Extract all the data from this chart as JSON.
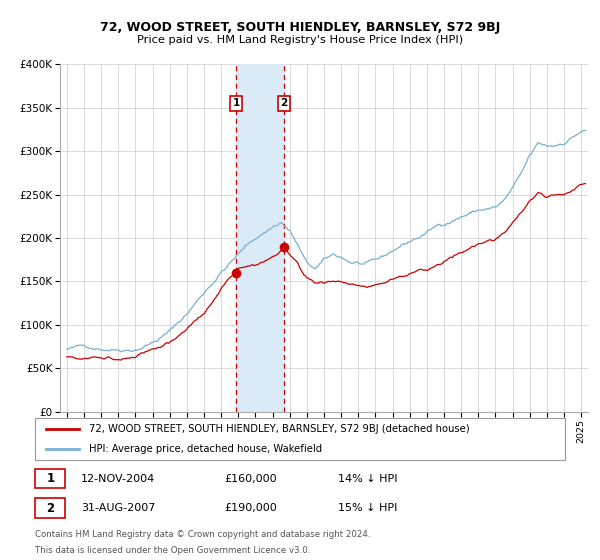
{
  "title": "72, WOOD STREET, SOUTH HIENDLEY, BARNSLEY, S72 9BJ",
  "subtitle": "Price paid vs. HM Land Registry's House Price Index (HPI)",
  "ylim": [
    0,
    400000
  ],
  "yticks": [
    0,
    50000,
    100000,
    150000,
    200000,
    250000,
    300000,
    350000,
    400000
  ],
  "ytick_labels": [
    "£0",
    "£50K",
    "£100K",
    "£150K",
    "£200K",
    "£250K",
    "£300K",
    "£350K",
    "£400K"
  ],
  "xlim_start": 1994.6,
  "xlim_end": 2025.4,
  "xticks": [
    1995,
    1996,
    1997,
    1998,
    1999,
    2000,
    2001,
    2002,
    2003,
    2004,
    2005,
    2006,
    2007,
    2008,
    2009,
    2010,
    2011,
    2012,
    2013,
    2014,
    2015,
    2016,
    2017,
    2018,
    2019,
    2020,
    2021,
    2022,
    2023,
    2024,
    2025
  ],
  "red_color": "#cc0000",
  "blue_color": "#7ab0d4",
  "shade_color": "#daeaf7",
  "grid_color": "#cccccc",
  "purchase1_x": 2004.87,
  "purchase1_y": 160000,
  "purchase2_x": 2007.66,
  "purchase2_y": 190000,
  "purchase1_date": "12-NOV-2004",
  "purchase1_price": "£160,000",
  "purchase1_hpi": "14% ↓ HPI",
  "purchase2_date": "31-AUG-2007",
  "purchase2_price": "£190,000",
  "purchase2_hpi": "15% ↓ HPI",
  "legend_line1": "72, WOOD STREET, SOUTH HIENDLEY, BARNSLEY, S72 9BJ (detached house)",
  "legend_line2": "HPI: Average price, detached house, Wakefield",
  "footnote1": "Contains HM Land Registry data © Crown copyright and database right 2024.",
  "footnote2": "This data is licensed under the Open Government Licence v3.0.",
  "background_color": "#ffffff"
}
